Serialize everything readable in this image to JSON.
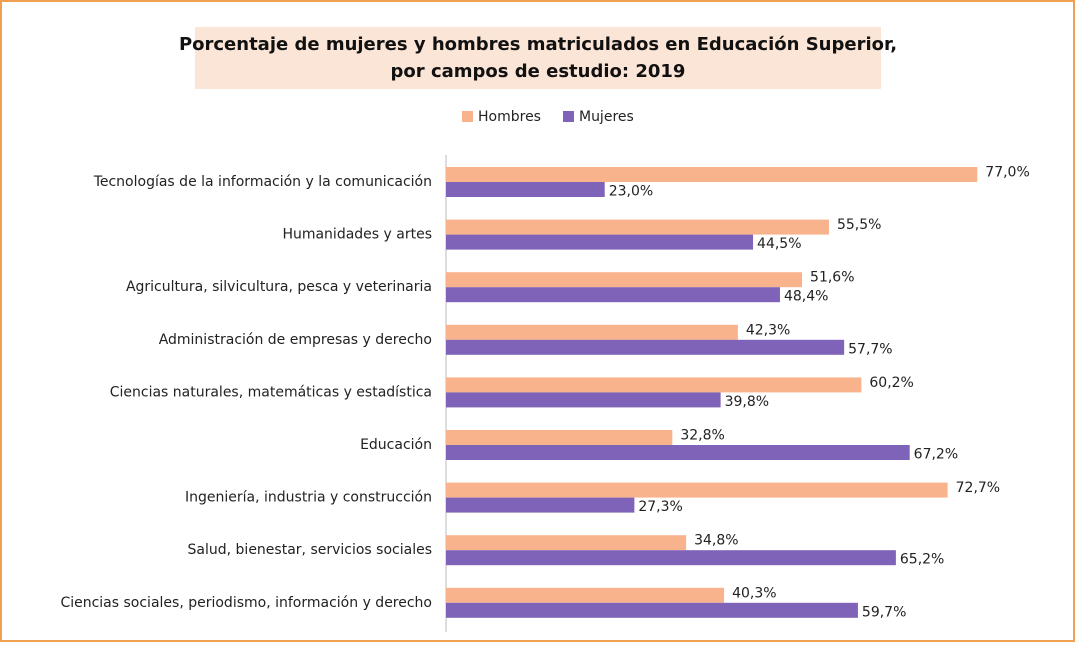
{
  "chart_data": {
    "type": "barh",
    "title": [
      "Porcentaje de mujeres y hombres matriculados en Educación Superior,",
      "por campos de estudio: 2019"
    ],
    "categories": [
      "Tecnologías de la información y la comunicación",
      "Humanidades y artes",
      "Agricultura, silvicultura, pesca y veterinaria",
      "Administración de empresas y derecho",
      "Ciencias naturales, matemáticas y estadística",
      "Educación",
      "Ingeniería, industria y construcción",
      "Salud, bienestar, servicios sociales",
      "Ciencias sociales, periodismo, información y derecho"
    ],
    "series": [
      {
        "name": "Hombres",
        "color": "#f8b38c",
        "values": [
          77.0,
          55.5,
          51.6,
          42.3,
          60.2,
          32.8,
          72.7,
          34.8,
          40.3
        ],
        "value_labels": [
          "77,0%",
          "55,5%",
          "51,6%",
          "42,3%",
          "60,2%",
          "32,8%",
          "72,7%",
          "34,8%",
          "40,3%"
        ]
      },
      {
        "name": "Mujeres",
        "color": "#7f63b8",
        "values": [
          23.0,
          44.5,
          48.4,
          57.7,
          39.8,
          67.2,
          27.3,
          65.2,
          59.7
        ],
        "value_labels": [
          "23,0%",
          "44,5%",
          "48,4%",
          "57,7%",
          "39,8%",
          "67,2%",
          "27,3%",
          "65,2%",
          "59,7%"
        ]
      }
    ],
    "xlim": [
      0,
      80
    ],
    "legend": "top"
  }
}
